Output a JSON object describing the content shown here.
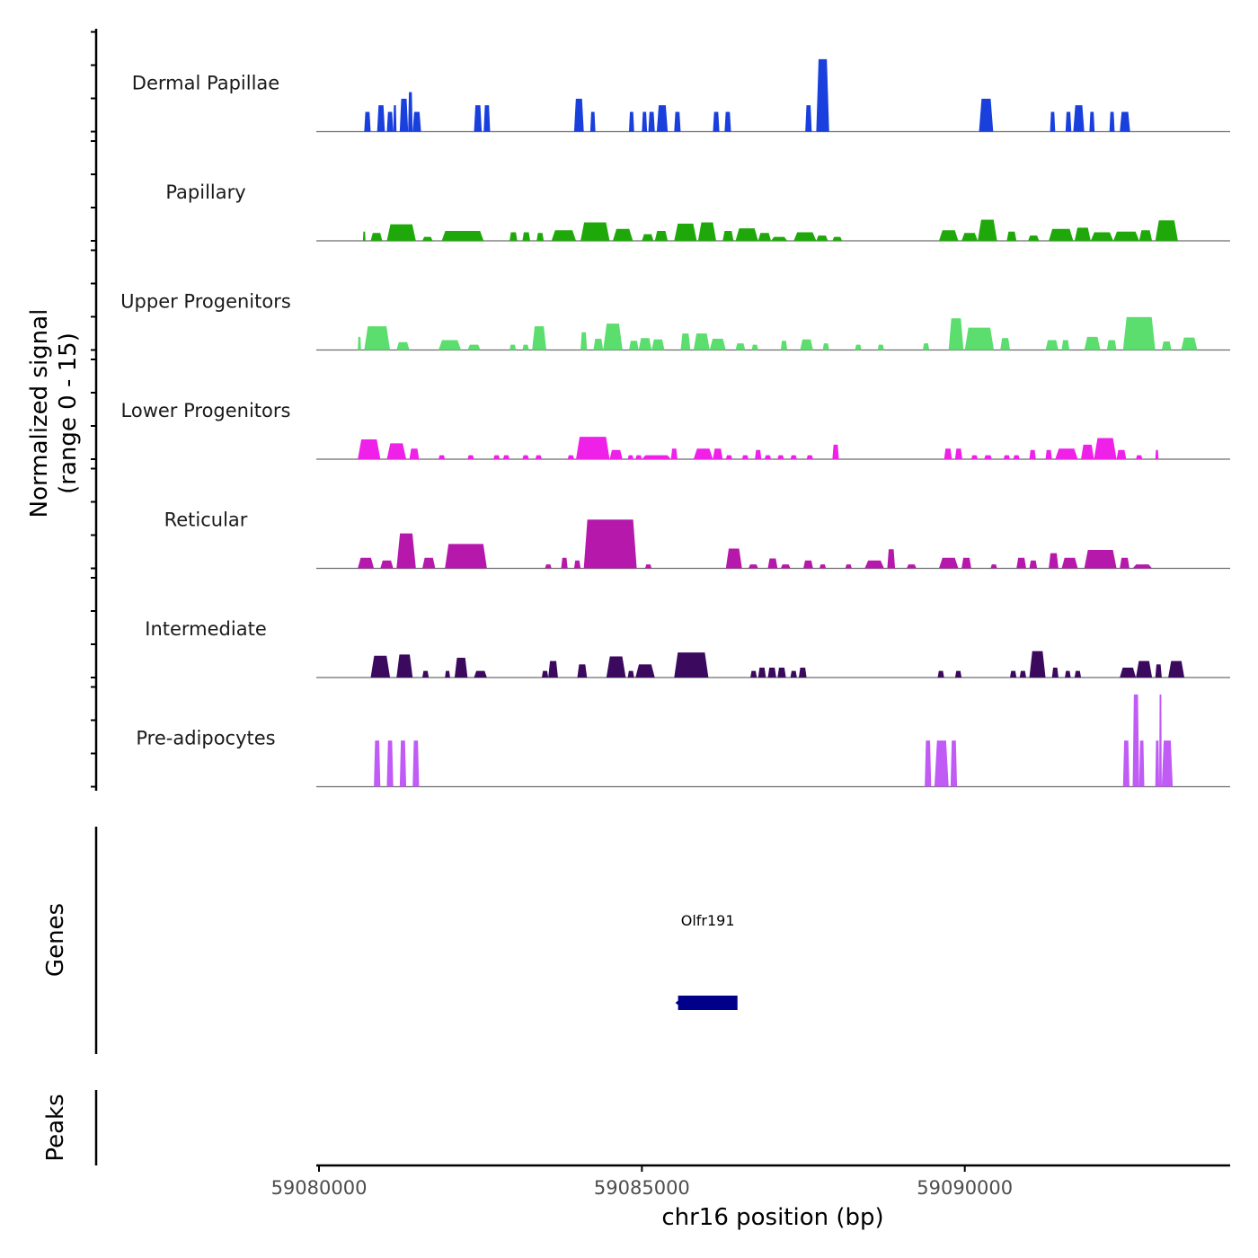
{
  "chart_data": {
    "type": "area",
    "title": "",
    "xlabel": "chr16 position (bp)",
    "ylabel": "Normalized signal\n(range 0 - 15)",
    "ylabel_lines": [
      "Normalized signal",
      "(range 0 - 15)"
    ],
    "xlim": [
      59079958,
      59094109
    ],
    "ylim": [
      0,
      15
    ],
    "x_ticks": [
      59080000,
      59085000,
      59090000
    ],
    "x_tick_labels": [
      "59080000",
      "59085000",
      "59090000"
    ],
    "grid": false,
    "tracks": [
      {
        "name": "Dermal Papillae",
        "color": "#1940dd",
        "peaks": [
          [
            59080700,
            59080800,
            3
          ],
          [
            59080900,
            59081020,
            4
          ],
          [
            59081050,
            59081150,
            3
          ],
          [
            59081150,
            59081200,
            4
          ],
          [
            59081250,
            59081380,
            5
          ],
          [
            59081380,
            59081450,
            6
          ],
          [
            59081450,
            59081580,
            3
          ],
          [
            59082400,
            59082520,
            4
          ],
          [
            59082550,
            59082650,
            4
          ],
          [
            59083950,
            59084100,
            5
          ],
          [
            59084200,
            59084280,
            3
          ],
          [
            59084800,
            59084880,
            3
          ],
          [
            59085000,
            59085080,
            3
          ],
          [
            59085100,
            59085200,
            3
          ],
          [
            59085230,
            59085400,
            4
          ],
          [
            59085500,
            59085600,
            3
          ],
          [
            59086100,
            59086200,
            3
          ],
          [
            59086280,
            59086380,
            3
          ],
          [
            59087530,
            59087630,
            4
          ],
          [
            59087700,
            59087900,
            11
          ],
          [
            59090220,
            59090440,
            5
          ],
          [
            59091320,
            59091400,
            3
          ],
          [
            59091560,
            59091650,
            3
          ],
          [
            59091680,
            59091850,
            4
          ],
          [
            59091930,
            59092010,
            3
          ],
          [
            59092240,
            59092320,
            3
          ],
          [
            59092400,
            59092560,
            3
          ]
        ]
      },
      {
        "name": "Papillary",
        "color": "#1fa80a",
        "peaks": [
          [
            59080680,
            59080720,
            1.4
          ],
          [
            59080800,
            59080980,
            1.2
          ],
          [
            59081050,
            59081500,
            2.5
          ],
          [
            59081600,
            59081760,
            0.6
          ],
          [
            59081900,
            59082550,
            1.5
          ],
          [
            59082950,
            59083070,
            1.3
          ],
          [
            59083150,
            59083270,
            1.3
          ],
          [
            59083370,
            59083480,
            1.2
          ],
          [
            59083600,
            59083980,
            1.6
          ],
          [
            59084050,
            59084500,
            2.8
          ],
          [
            59084550,
            59084860,
            1.8
          ],
          [
            59085000,
            59085180,
            1.0
          ],
          [
            59085200,
            59085400,
            1.5
          ],
          [
            59085500,
            59085850,
            2.6
          ],
          [
            59085870,
            59086150,
            2.8
          ],
          [
            59086250,
            59086420,
            1.5
          ],
          [
            59086450,
            59086800,
            1.9
          ],
          [
            59086800,
            59087000,
            1.2
          ],
          [
            59087000,
            59087250,
            0.6
          ],
          [
            59087350,
            59087700,
            1.3
          ],
          [
            59087700,
            59087880,
            0.8
          ],
          [
            59087950,
            59088100,
            0.6
          ],
          [
            59089600,
            59089900,
            1.6
          ],
          [
            59089950,
            59090200,
            1.2
          ],
          [
            59090200,
            59090500,
            3.2
          ],
          [
            59090650,
            59090800,
            1.4
          ],
          [
            59090980,
            59091150,
            0.8
          ],
          [
            59091300,
            59091680,
            1.8
          ],
          [
            59091700,
            59091950,
            2.0
          ],
          [
            59091950,
            59092300,
            1.3
          ],
          [
            59092300,
            59092700,
            1.4
          ],
          [
            59092700,
            59092900,
            1.6
          ],
          [
            59092950,
            59093300,
            3.1
          ]
        ]
      },
      {
        "name": "Upper Progenitors",
        "color": "#5bde6e",
        "peaks": [
          [
            59080600,
            59080650,
            2.0
          ],
          [
            59080700,
            59081100,
            3.6
          ],
          [
            59081200,
            59081400,
            1.2
          ],
          [
            59081850,
            59082200,
            1.5
          ],
          [
            59082300,
            59082500,
            0.8
          ],
          [
            59082950,
            59083050,
            0.8
          ],
          [
            59083150,
            59083250,
            0.8
          ],
          [
            59083300,
            59083520,
            3.6
          ],
          [
            59084050,
            59084150,
            2.7
          ],
          [
            59084250,
            59084400,
            1.7
          ],
          [
            59084400,
            59084700,
            4.0
          ],
          [
            59084800,
            59084950,
            1.4
          ],
          [
            59084950,
            59085150,
            1.8
          ],
          [
            59085150,
            59085350,
            1.6
          ],
          [
            59085600,
            59085750,
            2.5
          ],
          [
            59085800,
            59086050,
            2.5
          ],
          [
            59086050,
            59086300,
            1.7
          ],
          [
            59086450,
            59086600,
            1.0
          ],
          [
            59086700,
            59086800,
            0.8
          ],
          [
            59087150,
            59087250,
            1.4
          ],
          [
            59087450,
            59087650,
            1.6
          ],
          [
            59087800,
            59087900,
            1.0
          ],
          [
            59088300,
            59088400,
            0.8
          ],
          [
            59088650,
            59088750,
            0.8
          ],
          [
            59089350,
            59089450,
            1.0
          ],
          [
            59089750,
            59089980,
            4.8
          ],
          [
            59090000,
            59090450,
            3.4
          ],
          [
            59090550,
            59090700,
            1.8
          ],
          [
            59091250,
            59091450,
            1.5
          ],
          [
            59091500,
            59091620,
            1.5
          ],
          [
            59091850,
            59092100,
            2.0
          ],
          [
            59092200,
            59092350,
            1.5
          ],
          [
            59092450,
            59092950,
            5.0
          ],
          [
            59093050,
            59093200,
            1.3
          ],
          [
            59093350,
            59093600,
            1.9
          ]
        ]
      },
      {
        "name": "Lower Progenitors",
        "color": "#ef21e8",
        "peaks": [
          [
            59080600,
            59080950,
            3.0
          ],
          [
            59081050,
            59081350,
            2.4
          ],
          [
            59081400,
            59081550,
            1.6
          ],
          [
            59081850,
            59081950,
            0.6
          ],
          [
            59082300,
            59082400,
            0.6
          ],
          [
            59082700,
            59082800,
            0.6
          ],
          [
            59082850,
            59082950,
            0.6
          ],
          [
            59083150,
            59083250,
            0.6
          ],
          [
            59083350,
            59083450,
            0.6
          ],
          [
            59083850,
            59083950,
            0.6
          ],
          [
            59083980,
            59084500,
            3.4
          ],
          [
            59084500,
            59084700,
            1.4
          ],
          [
            59084780,
            59084870,
            0.6
          ],
          [
            59084900,
            59085000,
            0.6
          ],
          [
            59085000,
            59085450,
            0.6
          ],
          [
            59085450,
            59085550,
            1.6
          ],
          [
            59085800,
            59086100,
            1.6
          ],
          [
            59086100,
            59086250,
            1.6
          ],
          [
            59086300,
            59086400,
            0.6
          ],
          [
            59086550,
            59086650,
            0.6
          ],
          [
            59086750,
            59086850,
            1.4
          ],
          [
            59086900,
            59087000,
            0.6
          ],
          [
            59087100,
            59087200,
            0.6
          ],
          [
            59087300,
            59087400,
            0.6
          ],
          [
            59087550,
            59087650,
            0.6
          ],
          [
            59087950,
            59088050,
            2.2
          ],
          [
            59089680,
            59089800,
            1.6
          ],
          [
            59089850,
            59089960,
            1.6
          ],
          [
            59090100,
            59090200,
            0.6
          ],
          [
            59090300,
            59090420,
            0.6
          ],
          [
            59090600,
            59090700,
            0.6
          ],
          [
            59090750,
            59090850,
            0.6
          ],
          [
            59091000,
            59091100,
            1.4
          ],
          [
            59091250,
            59091350,
            1.4
          ],
          [
            59091400,
            59091750,
            1.6
          ],
          [
            59091800,
            59092000,
            2.2
          ],
          [
            59092000,
            59092350,
            3.2
          ],
          [
            59092350,
            59092500,
            1.4
          ],
          [
            59092650,
            59092750,
            0.6
          ],
          [
            59092950,
            59093000,
            1.4
          ]
        ]
      },
      {
        "name": "Reticular",
        "color": "#b718ac",
        "peaks": [
          [
            59080600,
            59080850,
            1.6
          ],
          [
            59080950,
            59081150,
            1.2
          ],
          [
            59081200,
            59081500,
            5.3
          ],
          [
            59081600,
            59081800,
            1.6
          ],
          [
            59081950,
            59082600,
            3.7
          ],
          [
            59083500,
            59083600,
            0.6
          ],
          [
            59083750,
            59083850,
            1.6
          ],
          [
            59083950,
            59084050,
            1.2
          ],
          [
            59084100,
            59084920,
            7.4
          ],
          [
            59085050,
            59085150,
            0.6
          ],
          [
            59086300,
            59086550,
            3.0
          ],
          [
            59086650,
            59086800,
            0.6
          ],
          [
            59086950,
            59087100,
            1.5
          ],
          [
            59087150,
            59087300,
            0.6
          ],
          [
            59087500,
            59087650,
            1.2
          ],
          [
            59087750,
            59087850,
            0.6
          ],
          [
            59088150,
            59088250,
            0.6
          ],
          [
            59088450,
            59088750,
            1.2
          ],
          [
            59088800,
            59088920,
            2.9
          ],
          [
            59089100,
            59089250,
            0.6
          ],
          [
            59089600,
            59089900,
            1.6
          ],
          [
            59089950,
            59090100,
            1.6
          ],
          [
            59090400,
            59090500,
            0.6
          ],
          [
            59090800,
            59090950,
            1.6
          ],
          [
            59091000,
            59091120,
            1.2
          ],
          [
            59091300,
            59091450,
            2.3
          ],
          [
            59091500,
            59091750,
            1.6
          ],
          [
            59091850,
            59092350,
            2.8
          ],
          [
            59092400,
            59092550,
            1.6
          ],
          [
            59092600,
            59092900,
            0.6
          ]
        ]
      },
      {
        "name": "Intermediate",
        "color": "#3b0a5e",
        "peaks": [
          [
            59080800,
            59081100,
            3.3
          ],
          [
            59081200,
            59081450,
            3.5
          ],
          [
            59081600,
            59081700,
            1.0
          ],
          [
            59081950,
            59082030,
            1.0
          ],
          [
            59082100,
            59082300,
            3.0
          ],
          [
            59082400,
            59082600,
            1.0
          ],
          [
            59083450,
            59083550,
            1.0
          ],
          [
            59083550,
            59083700,
            2.5
          ],
          [
            59084000,
            59084150,
            2.0
          ],
          [
            59084450,
            59084750,
            3.2
          ],
          [
            59084780,
            59084880,
            1.0
          ],
          [
            59084900,
            59085200,
            2.0
          ],
          [
            59085500,
            59086030,
            3.8
          ],
          [
            59086680,
            59086780,
            1.0
          ],
          [
            59086800,
            59086920,
            1.5
          ],
          [
            59086950,
            59087080,
            1.5
          ],
          [
            59087100,
            59087230,
            1.5
          ],
          [
            59087300,
            59087400,
            1.0
          ],
          [
            59087430,
            59087550,
            1.5
          ],
          [
            59089580,
            59089680,
            1.0
          ],
          [
            59089850,
            59089950,
            1.0
          ],
          [
            59090700,
            59090800,
            1.0
          ],
          [
            59090850,
            59090950,
            1.0
          ],
          [
            59091000,
            59091250,
            4.0
          ],
          [
            59091350,
            59091450,
            1.5
          ],
          [
            59091550,
            59091640,
            1.0
          ],
          [
            59091700,
            59091800,
            1.0
          ],
          [
            59092400,
            59092650,
            1.5
          ],
          [
            59092650,
            59092900,
            2.5
          ],
          [
            59092950,
            59093050,
            2.0
          ],
          [
            59093150,
            59093400,
            2.5
          ]
        ]
      },
      {
        "name": "Pre-adipocytes",
        "color": "#c05bf6",
        "peaks": [
          [
            59080850,
            59080950,
            7
          ],
          [
            59081050,
            59081150,
            7
          ],
          [
            59081250,
            59081350,
            7
          ],
          [
            59081450,
            59081550,
            7
          ],
          [
            59089380,
            59089480,
            7
          ],
          [
            59089530,
            59089750,
            7
          ],
          [
            59089780,
            59089880,
            7
          ],
          [
            59092450,
            59092550,
            7
          ],
          [
            59092600,
            59092700,
            14
          ],
          [
            59092700,
            59092780,
            7
          ],
          [
            59092950,
            59093010,
            7
          ],
          [
            59093010,
            59093050,
            14
          ],
          [
            59093050,
            59093220,
            7
          ]
        ]
      }
    ],
    "genes": [
      {
        "name": "Olfr191",
        "start": 59085560,
        "end": 59086480,
        "strand": "-",
        "color": "#00008b"
      }
    ],
    "peaks_track": []
  },
  "panels": {
    "genes_label": "Genes",
    "peaks_label": "Peaks"
  }
}
